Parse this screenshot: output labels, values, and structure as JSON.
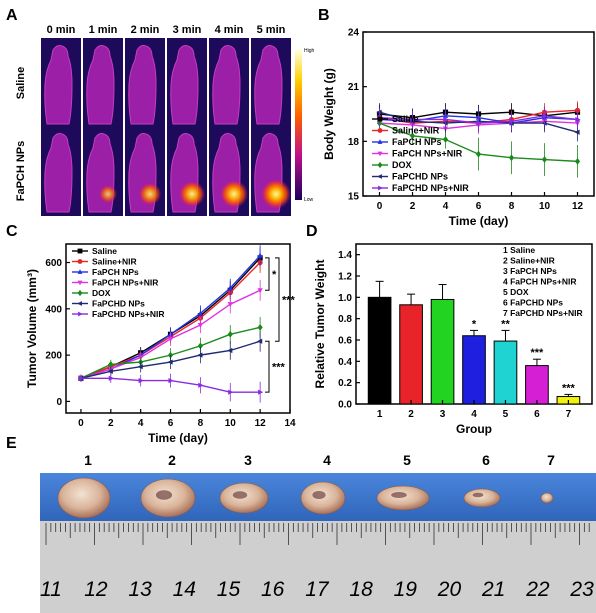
{
  "panel_letters": [
    "A",
    "B",
    "C",
    "D",
    "E"
  ],
  "colors": {
    "saline": "#000000",
    "saline_nir": "#e8242a",
    "fapch": "#2431e8",
    "fapch_nir": "#e033e0",
    "dox": "#1a8a1a",
    "fapchd": "#1f2a70",
    "fapchd_nir": "#8a2be2",
    "bar1": "#000000",
    "bar2": "#e8242a",
    "bar3": "#22d322",
    "bar4": "#1f1fe0",
    "bar5": "#1fd3d3",
    "bar6": "#d51fd5",
    "bar7": "#f2f20a",
    "tray": "#3b78d0",
    "ruler": "#c8c8c8"
  },
  "panelA": {
    "times": [
      "0 min",
      "1 min",
      "2 min",
      "3 min",
      "4 min",
      "5 min"
    ],
    "rows": [
      "Saline",
      "FaPCH NPs"
    ],
    "colorbar_high": "High",
    "colorbar_low": "Low",
    "hotspot_intensity": [
      [
        0,
        0,
        0,
        0,
        0,
        0
      ],
      [
        0,
        0.35,
        0.6,
        0.8,
        0.9,
        1.0
      ]
    ]
  },
  "chart_data": [
    {
      "panel": "B",
      "type": "line",
      "xlabel": "Time (day)",
      "ylabel": "Body Weight (g)",
      "xlim": [
        -1,
        13
      ],
      "ylim": [
        15,
        24
      ],
      "xticks": [
        0,
        2,
        4,
        6,
        8,
        10,
        12
      ],
      "yticks": [
        15,
        18,
        21,
        24
      ],
      "legend": "inside-lower-left",
      "x": [
        0,
        2,
        4,
        6,
        8,
        10,
        12
      ],
      "series": [
        {
          "name": "Saline",
          "color": "#000000",
          "marker": "square",
          "values": [
            19.5,
            19.3,
            19.6,
            19.5,
            19.6,
            19.4,
            19.6
          ]
        },
        {
          "name": "Saline+NIR",
          "color": "#e8242a",
          "marker": "circle",
          "values": [
            19.3,
            19.0,
            19.1,
            19.0,
            19.2,
            19.6,
            19.7
          ]
        },
        {
          "name": "FaPCH NPs",
          "color": "#2431e8",
          "marker": "triangle",
          "values": [
            19.2,
            19.1,
            19.4,
            19.3,
            19.0,
            19.3,
            19.2
          ]
        },
        {
          "name": "FaPCH NPs+NIR",
          "color": "#e033e0",
          "marker": "tri-down",
          "values": [
            19.0,
            18.9,
            18.7,
            18.9,
            19.0,
            19.1,
            19.0
          ]
        },
        {
          "name": "DOX",
          "color": "#1a8a1a",
          "marker": "diamond",
          "values": [
            19.0,
            18.3,
            18.1,
            17.3,
            17.1,
            17.0,
            16.9
          ]
        },
        {
          "name": "FaPCHD NPs",
          "color": "#1f2a70",
          "marker": "tri-left",
          "values": [
            19.6,
            19.1,
            19.0,
            19.1,
            19.0,
            19.0,
            18.5
          ]
        },
        {
          "name": "FaPCHD NPs+NIR",
          "color": "#8a2be2",
          "marker": "tri-right",
          "values": [
            19.3,
            19.2,
            19.2,
            19.0,
            19.1,
            19.4,
            19.2
          ]
        }
      ]
    },
    {
      "panel": "C",
      "type": "line",
      "xlabel": "Time (day)",
      "ylabel": "Tumor Volume (mm³)",
      "xlim": [
        -1,
        14
      ],
      "ylim": [
        -50,
        680
      ],
      "xticks": [
        0,
        2,
        4,
        6,
        8,
        10,
        12,
        14
      ],
      "yticks": [
        0,
        200,
        400,
        600
      ],
      "legend": "inside-upper-left",
      "significance": [
        "*",
        "***",
        "***"
      ],
      "x": [
        0,
        2,
        4,
        6,
        8,
        10,
        12
      ],
      "series": [
        {
          "name": "Saline",
          "color": "#000000",
          "marker": "square",
          "values": [
            100,
            150,
            210,
            290,
            370,
            480,
            620
          ]
        },
        {
          "name": "Saline+NIR",
          "color": "#e8242a",
          "marker": "circle",
          "values": [
            100,
            150,
            200,
            280,
            360,
            470,
            600
          ]
        },
        {
          "name": "FaPCH NPs",
          "color": "#2431e8",
          "marker": "triangle",
          "values": [
            100,
            140,
            200,
            290,
            380,
            490,
            630
          ]
        },
        {
          "name": "FaPCH NPs+NIR",
          "color": "#e033e0",
          "marker": "tri-down",
          "values": [
            100,
            140,
            190,
            270,
            330,
            420,
            480
          ]
        },
        {
          "name": "DOX",
          "color": "#1a8a1a",
          "marker": "diamond",
          "values": [
            100,
            160,
            170,
            200,
            240,
            290,
            320
          ]
        },
        {
          "name": "FaPCHD NPs",
          "color": "#1f2a70",
          "marker": "tri-left",
          "values": [
            100,
            130,
            150,
            170,
            200,
            220,
            260
          ]
        },
        {
          "name": "FaPCHD NPs+NIR",
          "color": "#8a2be2",
          "marker": "tri-right",
          "values": [
            100,
            100,
            90,
            90,
            70,
            40,
            40
          ]
        }
      ]
    },
    {
      "panel": "D",
      "type": "bar",
      "xlabel": "Group",
      "ylabel": "Relative Tumor Weight",
      "ylim": [
        0,
        1.5
      ],
      "yticks": [
        0.0,
        0.2,
        0.4,
        0.6,
        0.8,
        1.0,
        1.2,
        1.4
      ],
      "categories": [
        "1",
        "2",
        "3",
        "4",
        "5",
        "6",
        "7"
      ],
      "values": [
        1.0,
        0.93,
        0.98,
        0.64,
        0.59,
        0.36,
        0.07
      ],
      "errors": [
        0.15,
        0.1,
        0.14,
        0.05,
        0.1,
        0.06,
        0.02
      ],
      "significance": [
        "",
        "",
        "",
        "*",
        "**",
        "***",
        "***"
      ],
      "legend_entries": [
        "1 Saline",
        "2 Saline+NIR",
        "3 FaPCH NPs",
        "4 FaPCH NPs+NIR",
        "5 DOX",
        "6 FaPCHD NPs",
        "7 FaPCHD NPs+NIR"
      ]
    }
  ],
  "panelE": {
    "tumor_labels": [
      "1",
      "2",
      "3",
      "4",
      "5",
      "6",
      "7"
    ],
    "ruler_numbers": [
      "11",
      "12",
      "13",
      "14",
      "15",
      "16",
      "17",
      "18",
      "19",
      "20",
      "21",
      "22",
      "23"
    ]
  }
}
